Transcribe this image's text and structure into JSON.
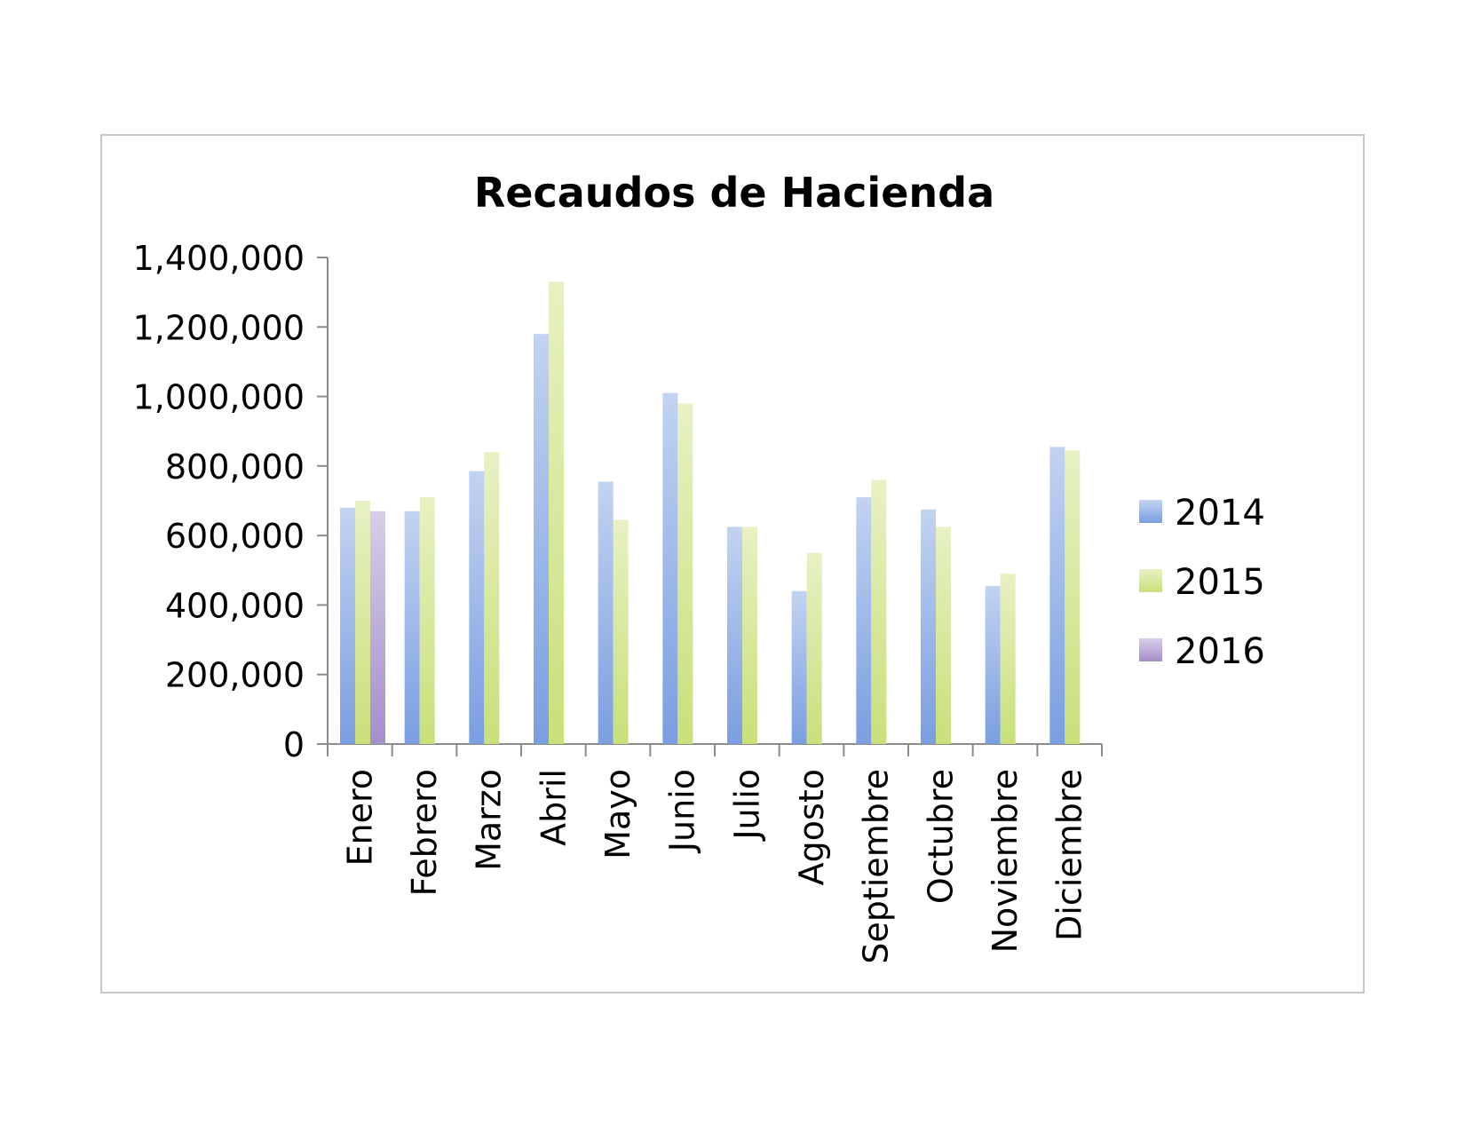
{
  "chart_data": {
    "type": "bar",
    "title": "Recaudos de Hacienda",
    "xlabel": "",
    "ylabel": "",
    "ylim": [
      0,
      1400000
    ],
    "yticks": [
      0,
      200000,
      400000,
      600000,
      800000,
      1000000,
      1200000,
      1400000
    ],
    "ytick_labels": [
      "0",
      "200,000",
      "400,000",
      "600,000",
      "800,000",
      "1,000,000",
      "1,200,000",
      "1,400,000"
    ],
    "grid": false,
    "legend_position": "right",
    "categories": [
      "Enero",
      "Febrero",
      "Marzo",
      "Abril",
      "Mayo",
      "Junio",
      "Julio",
      "Agosto",
      "Septiembre",
      "Octubre",
      "Noviembre",
      "Diciembre"
    ],
    "series": [
      {
        "name": "2014",
        "color": "#7a9ee0",
        "values": [
          680000,
          670000,
          785000,
          1180000,
          755000,
          1010000,
          625000,
          440000,
          710000,
          675000,
          455000,
          855000
        ]
      },
      {
        "name": "2015",
        "color": "#c9e07a",
        "values": [
          700000,
          710000,
          840000,
          1330000,
          645000,
          980000,
          625000,
          550000,
          760000,
          625000,
          490000,
          845000
        ]
      },
      {
        "name": "2016",
        "color": "#a58fcc",
        "values": [
          670000,
          null,
          null,
          null,
          null,
          null,
          null,
          null,
          null,
          null,
          null,
          null
        ]
      }
    ]
  }
}
